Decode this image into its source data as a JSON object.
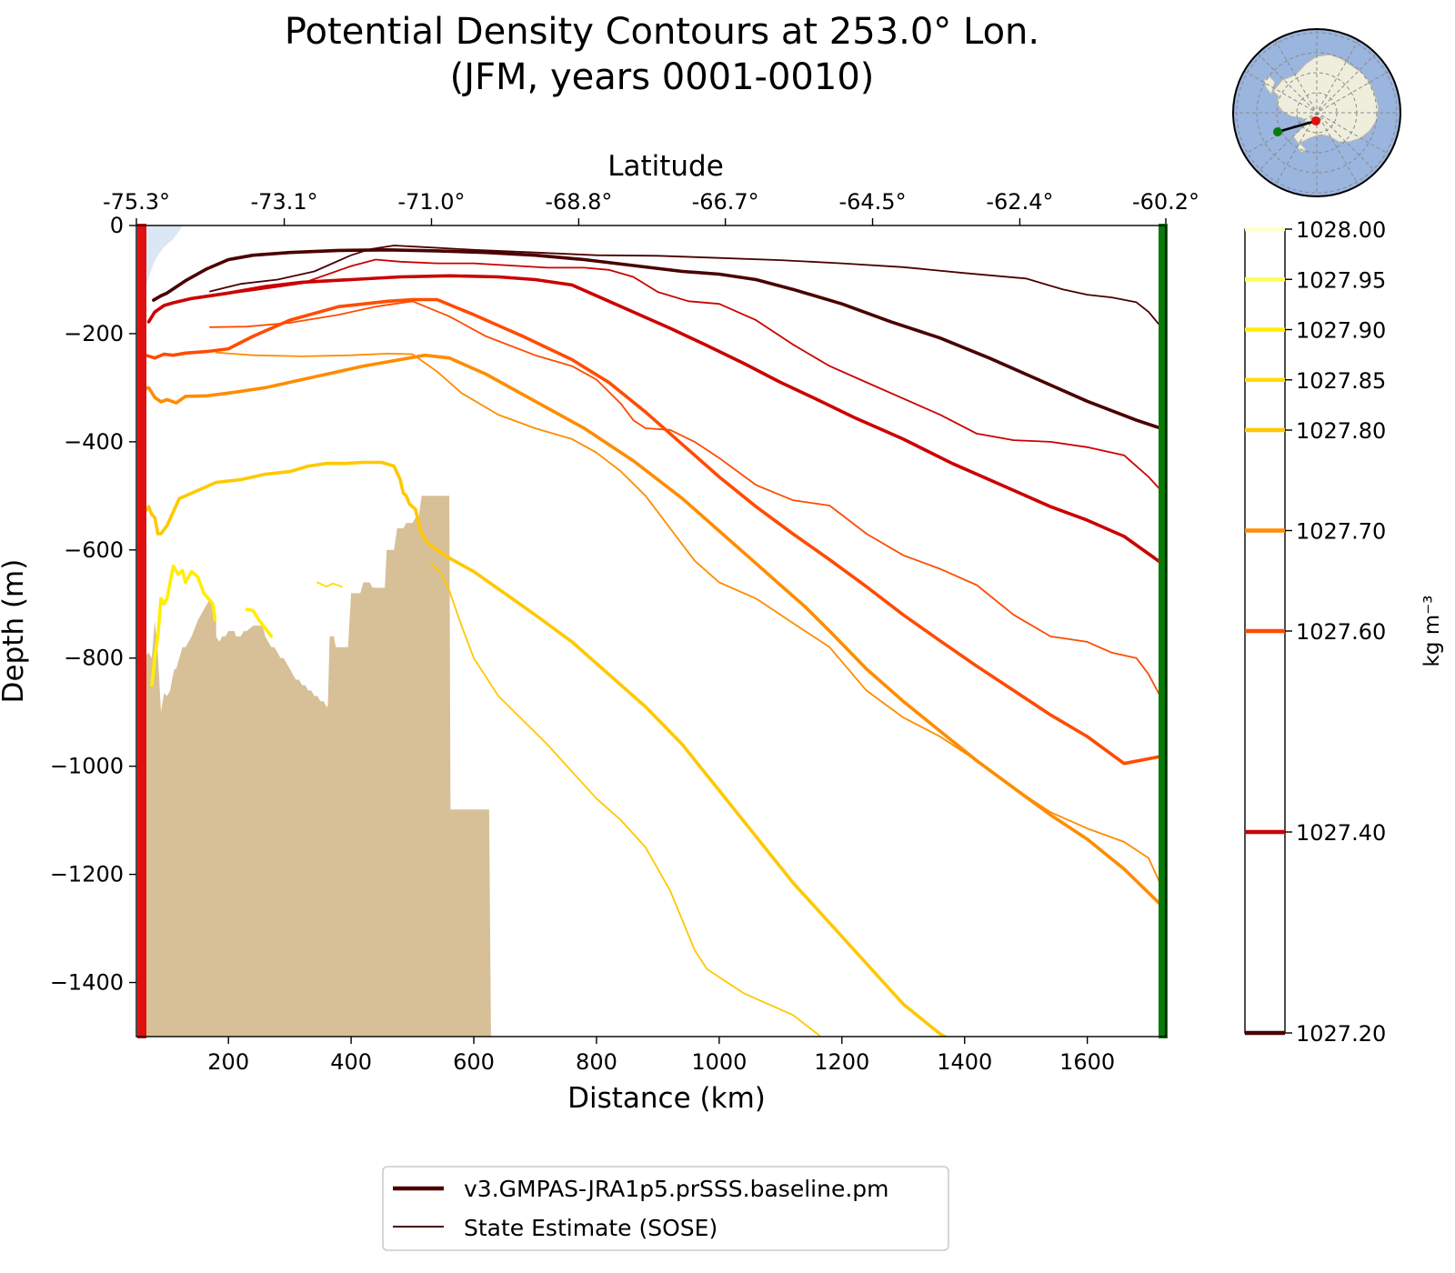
{
  "title": {
    "line1": "Potential Density Contours at 253.0° Lon.",
    "line2": "(JFM, years 0001-0010)"
  },
  "chart_data": {
    "type": "line",
    "xlabel": "Distance (km)",
    "ylabel": "Depth (m)",
    "top_axis_label": "Latitude",
    "xlim": [
      50,
      1728
    ],
    "ylim": [
      -1500,
      0
    ],
    "x_ticks": [
      200,
      400,
      600,
      800,
      1000,
      1200,
      1400,
      1600
    ],
    "x_tick_labels": [
      "200",
      "400",
      "600",
      "800",
      "1000",
      "1200",
      "1400",
      "1600"
    ],
    "y_ticks": [
      0,
      -200,
      -400,
      -600,
      -800,
      -1000,
      -1200,
      -1400
    ],
    "y_tick_labels": [
      "0",
      "−200",
      "−400",
      "−600",
      "−800",
      "−1000",
      "−1200",
      "−1400"
    ],
    "lat_ticks": [
      {
        "x": 50,
        "label": "-75.3°"
      },
      {
        "x": 291,
        "label": "-73.1°"
      },
      {
        "x": 531,
        "label": "-71.0°"
      },
      {
        "x": 771,
        "label": "-68.8°"
      },
      {
        "x": 1010,
        "label": "-66.7°"
      },
      {
        "x": 1250,
        "label": "-64.5°"
      },
      {
        "x": 1490,
        "label": "-62.4°"
      },
      {
        "x": 1728,
        "label": "-60.2°"
      }
    ],
    "colorbar": {
      "unit_label": "kg m⁻³",
      "min": 1027.2,
      "max": 1028.0,
      "levels": [
        {
          "value": 1028.0,
          "label": "1028.00",
          "color": "#ffffcc"
        },
        {
          "value": 1027.95,
          "label": "1027.95",
          "color": "#ffff55"
        },
        {
          "value": 1027.9,
          "label": "1027.90",
          "color": "#ffee00"
        },
        {
          "value": 1027.85,
          "label": "1027.85",
          "color": "#ffdd00"
        },
        {
          "value": 1027.8,
          "label": "1027.80",
          "color": "#ffc800"
        },
        {
          "value": 1027.7,
          "label": "1027.70",
          "color": "#ff8c00"
        },
        {
          "value": 1027.6,
          "label": "1027.60",
          "color": "#ff4c00"
        },
        {
          "value": 1027.4,
          "label": "1027.40",
          "color": "#cc0000"
        },
        {
          "value": 1027.2,
          "label": "1027.20",
          "color": "#4a0000"
        }
      ]
    },
    "legend": {
      "placement": "below plot",
      "entries": [
        {
          "label": "v3.GMPAS-JRA1p5.prSSS.baseline.pm",
          "style": "thick"
        },
        {
          "label": "State Estimate (SOSE)",
          "style": "thin"
        }
      ]
    },
    "series": [
      {
        "name": "v3.GMPAS-JRA1p5.prSSS.baseline.pm",
        "level": 1027.2,
        "color": "#4a0000",
        "width": 3.6,
        "x": [
          78,
          90,
          100,
          130,
          165,
          200,
          240,
          300,
          380,
          460,
          540,
          620,
          700,
          780,
          860,
          940,
          1000,
          1060,
          1120,
          1200,
          1280,
          1360,
          1440,
          1520,
          1600,
          1680,
          1728
        ],
        "y": [
          -138,
          -130,
          -125,
          -102,
          -80,
          -63,
          -55,
          -50,
          -46,
          -45,
          -47,
          -50,
          -55,
          -63,
          -74,
          -85,
          -90,
          -100,
          -118,
          -145,
          -178,
          -208,
          -245,
          -285,
          -325,
          -360,
          -378
        ]
      },
      {
        "name": "State Estimate (SOSE)",
        "level": 1027.2,
        "color": "#4a0000",
        "width": 1.8,
        "x": [
          170,
          220,
          280,
          340,
          400,
          430,
          470,
          520,
          600,
          700,
          800,
          900,
          1000,
          1100,
          1200,
          1300,
          1400,
          1500,
          1560,
          1600,
          1640,
          1680,
          1700,
          1728
        ],
        "y": [
          -122,
          -108,
          -100,
          -85,
          -55,
          -44,
          -37,
          -40,
          -45,
          -50,
          -55,
          -56,
          -60,
          -64,
          -70,
          -77,
          -88,
          -98,
          -118,
          -128,
          -133,
          -142,
          -160,
          -198
        ]
      },
      {
        "name": "v3.GMPAS-JRA1p5.prSSS.baseline.pm",
        "level": 1027.4,
        "color": "#cc0000",
        "width": 3.6,
        "x": [
          70,
          80,
          95,
          110,
          140,
          170,
          200,
          260,
          320,
          400,
          480,
          560,
          640,
          700,
          760,
          800,
          860,
          920,
          980,
          1040,
          1100,
          1160,
          1220,
          1300,
          1380,
          1460,
          1540,
          1600,
          1660,
          1728
        ],
        "y": [
          -178,
          -160,
          -148,
          -143,
          -135,
          -130,
          -125,
          -113,
          -105,
          -100,
          -95,
          -93,
          -95,
          -100,
          -110,
          -130,
          -160,
          -190,
          -222,
          -255,
          -290,
          -322,
          -355,
          -395,
          -440,
          -480,
          -520,
          -545,
          -575,
          -630
        ]
      },
      {
        "name": "State Estimate (SOSE)",
        "level": 1027.4,
        "color": "#cc0000",
        "width": 1.8,
        "x": [
          170,
          240,
          320,
          400,
          440,
          480,
          540,
          600,
          660,
          720,
          780,
          820,
          860,
          900,
          950,
          1000,
          1060,
          1120,
          1180,
          1240,
          1300,
          1360,
          1420,
          1480,
          1540,
          1600,
          1660,
          1700,
          1728
        ],
        "y": [
          -130,
          -120,
          -107,
          -75,
          -63,
          -67,
          -70,
          -70,
          -74,
          -78,
          -78,
          -82,
          -95,
          -123,
          -140,
          -145,
          -175,
          -220,
          -260,
          -290,
          -320,
          -350,
          -385,
          -397,
          -400,
          -410,
          -425,
          -465,
          -500
        ]
      },
      {
        "name": "v3.GMPAS-JRA1p5.prSSS.baseline.pm",
        "level": 1027.6,
        "color": "#ff4c00",
        "width": 3.6,
        "x": [
          65,
          80,
          95,
          110,
          130,
          165,
          200,
          240,
          300,
          380,
          460,
          500,
          540,
          600,
          680,
          760,
          820,
          880,
          940,
          1000,
          1060,
          1120,
          1180,
          1240,
          1300,
          1360,
          1420,
          1480,
          1540,
          1600,
          1660,
          1728
        ],
        "y": [
          -240,
          -245,
          -238,
          -240,
          -236,
          -233,
          -228,
          -205,
          -175,
          -150,
          -140,
          -137,
          -137,
          -165,
          -205,
          -248,
          -290,
          -345,
          -405,
          -465,
          -520,
          -570,
          -618,
          -668,
          -720,
          -768,
          -815,
          -860,
          -905,
          -945,
          -995,
          -980
        ]
      },
      {
        "name": "State Estimate (SOSE)",
        "level": 1027.6,
        "color": "#ff4c00",
        "width": 1.8,
        "x": [
          170,
          230,
          300,
          380,
          440,
          500,
          560,
          620,
          700,
          760,
          800,
          840,
          860,
          880,
          920,
          960,
          1000,
          1060,
          1120,
          1180,
          1240,
          1300,
          1360,
          1420,
          1480,
          1540,
          1600,
          1640,
          1680,
          1700,
          1728
        ],
        "y": [
          -188,
          -187,
          -180,
          -165,
          -150,
          -140,
          -168,
          -205,
          -240,
          -260,
          -285,
          -330,
          -360,
          -375,
          -378,
          -400,
          -430,
          -480,
          -508,
          -518,
          -570,
          -610,
          -635,
          -665,
          -720,
          -760,
          -770,
          -790,
          -800,
          -830,
          -890
        ]
      },
      {
        "name": "v3.GMPAS-JRA1p5.prSSS.baseline.pm",
        "level": 1027.7,
        "color": "#ff8c00",
        "width": 3.6,
        "x": [
          63,
          70,
          80,
          90,
          100,
          115,
          130,
          165,
          200,
          260,
          340,
          420,
          480,
          520,
          560,
          620,
          700,
          780,
          860,
          940,
          1000,
          1060,
          1100,
          1140,
          1180,
          1240,
          1300,
          1360,
          1420,
          1480,
          1540,
          1600,
          1660,
          1728
        ],
        "y": [
          -302,
          -300,
          -318,
          -326,
          -322,
          -328,
          -316,
          -315,
          -310,
          -300,
          -280,
          -260,
          -248,
          -240,
          -245,
          -275,
          -325,
          -375,
          -435,
          -505,
          -565,
          -625,
          -665,
          -705,
          -750,
          -820,
          -880,
          -935,
          -990,
          -1040,
          -1090,
          -1135,
          -1190,
          -1265
        ]
      },
      {
        "name": "State Estimate (SOSE)",
        "level": 1027.7,
        "color": "#ff8c00",
        "width": 1.8,
        "x": [
          180,
          240,
          320,
          400,
          460,
          500,
          540,
          580,
          640,
          700,
          760,
          800,
          840,
          880,
          920,
          960,
          1000,
          1060,
          1120,
          1180,
          1240,
          1300,
          1360,
          1420,
          1480,
          1540,
          1600,
          1660,
          1700,
          1728
        ],
        "y": [
          -235,
          -240,
          -242,
          -240,
          -237,
          -238,
          -270,
          -310,
          -350,
          -375,
          -395,
          -420,
          -455,
          -500,
          -560,
          -620,
          -660,
          -690,
          -735,
          -780,
          -860,
          -910,
          -945,
          -990,
          -1040,
          -1085,
          -1115,
          -1140,
          -1170,
          -1240
        ]
      },
      {
        "name": "v3.GMPAS-JRA1p5.prSSS.baseline.pm",
        "level": 1027.8,
        "color": "#ffc800",
        "width": 3.6,
        "x": [
          60,
          63,
          70,
          75,
          80,
          85,
          90,
          100,
          120,
          150,
          180,
          220,
          260,
          300,
          330,
          360,
          390,
          420,
          450,
          470,
          480,
          485,
          490,
          495,
          500,
          505,
          512,
          515,
          520,
          528,
          540,
          560,
          600,
          650,
          700,
          760,
          820,
          880,
          940,
          1000,
          1060,
          1120,
          1180,
          1240,
          1300,
          1360,
          1368
        ],
        "y": [
          -530,
          -530,
          -520,
          -535,
          -540,
          -570,
          -570,
          -555,
          -505,
          -490,
          -475,
          -470,
          -460,
          -455,
          -445,
          -440,
          -440,
          -438,
          -438,
          -445,
          -470,
          -495,
          -500,
          -515,
          -520,
          -525,
          -560,
          -570,
          -580,
          -590,
          -600,
          -615,
          -640,
          -680,
          -720,
          -770,
          -830,
          -890,
          -960,
          -1045,
          -1130,
          -1215,
          -1290,
          -1365,
          -1440,
          -1495,
          -1500
        ]
      },
      {
        "name": "State Estimate (SOSE)",
        "level": 1027.8,
        "color": "#ffc800",
        "width": 1.8,
        "x": [
          530,
          545,
          560,
          580,
          600,
          640,
          680,
          720,
          760,
          800,
          840,
          880,
          920,
          960,
          980,
          1000,
          1040,
          1080,
          1120,
          1160,
          1165
        ],
        "y": [
          -625,
          -640,
          -675,
          -740,
          -800,
          -870,
          -915,
          -960,
          -1010,
          -1060,
          -1100,
          -1150,
          -1230,
          -1340,
          -1375,
          -1390,
          -1420,
          -1440,
          -1460,
          -1495,
          -1500
        ]
      },
      {
        "name": "v3.GMPAS-JRA1p5.prSSS.baseline.pm",
        "level": 1027.9,
        "color": "#ffee00",
        "width": 3.6,
        "x": [
          75,
          80,
          85,
          90,
          95,
          100,
          105,
          110,
          118,
          125,
          130,
          140,
          150,
          160,
          175,
          178
        ],
        "y": [
          -850,
          -800,
          -760,
          -690,
          -700,
          -690,
          -660,
          -630,
          -645,
          -638,
          -660,
          -640,
          -650,
          -680,
          -700,
          -730
        ]
      },
      {
        "name": "v3.GMPAS-JRA1p5.prSSS.baseline.pm",
        "level": 1027.9,
        "color": "#ffee00",
        "width": 3.6,
        "x": [
          230,
          240,
          250,
          270
        ],
        "y": [
          -710,
          -712,
          -730,
          -760
        ]
      },
      {
        "name": "State Estimate (SOSE)",
        "level": 1027.85,
        "color": "#ffdd00",
        "width": 1.8,
        "x": [
          345,
          360,
          370,
          385
        ],
        "y": [
          -660,
          -668,
          -662,
          -668
        ]
      }
    ],
    "land": {
      "x": [
        55,
        55,
        65,
        70,
        75,
        80,
        85,
        90,
        95,
        100,
        105,
        108,
        112,
        115,
        120,
        125,
        130,
        140,
        150,
        165,
        170,
        175,
        180,
        180,
        185,
        190,
        195,
        200,
        205,
        210,
        212,
        215,
        220,
        225,
        230,
        240,
        245,
        250,
        255,
        258,
        260,
        265,
        270,
        275,
        280,
        285,
        290,
        295,
        300,
        305,
        310,
        315,
        320,
        325,
        330,
        335,
        340,
        345,
        350,
        355,
        360,
        362,
        365,
        370,
        372,
        375,
        380,
        390,
        395,
        400,
        405,
        410,
        415,
        420,
        425,
        430,
        435,
        440,
        445,
        450,
        455,
        458,
        460,
        465,
        470,
        475,
        480,
        485,
        490,
        495,
        500,
        505,
        510,
        515,
        520,
        525,
        530,
        535,
        540,
        545,
        550,
        555,
        560,
        562,
        565,
        570,
        575,
        580,
        585,
        590,
        595,
        600,
        605,
        610,
        615,
        620,
        625,
        628
      ],
      "depth": [
        -1500,
        -800,
        -795,
        -790,
        -800,
        -730,
        -790,
        -900,
        -865,
        -870,
        -860,
        -840,
        -820,
        -820,
        -800,
        -780,
        -780,
        -760,
        -730,
        -700,
        -690,
        -700,
        -720,
        -760,
        -770,
        -760,
        -760,
        -750,
        -750,
        -750,
        -760,
        -760,
        -760,
        -750,
        -750,
        -740,
        -740,
        -740,
        -740,
        -750,
        -760,
        -770,
        -780,
        -780,
        -790,
        -800,
        -800,
        -810,
        -820,
        -830,
        -840,
        -840,
        -850,
        -850,
        -860,
        -860,
        -870,
        -870,
        -880,
        -880,
        -890,
        -890,
        -760,
        -760,
        -760,
        -780,
        -780,
        -780,
        -780,
        -680,
        -680,
        -680,
        -680,
        -660,
        -660,
        -660,
        -670,
        -670,
        -670,
        -670,
        -670,
        -600,
        -600,
        -600,
        -600,
        -560,
        -560,
        -560,
        -550,
        -550,
        -550,
        -540,
        -540,
        -500,
        -500,
        -500,
        -500,
        -500,
        -500,
        -500,
        -500,
        -500,
        -500,
        -1080,
        -1080,
        -1080,
        -1080,
        -1080,
        -1080,
        -1080,
        -1080,
        -1080,
        -1080,
        -1080,
        -1080,
        -1080,
        -1080,
        -1500
      ]
    },
    "ice_shelf": {
      "x": [
        55,
        60,
        70,
        80,
        90,
        100,
        110,
        115,
        120,
        125,
        120,
        110,
        95,
        85,
        78,
        72,
        66,
        62,
        58,
        55
      ],
      "depth": [
        0,
        0,
        0,
        0,
        0,
        0,
        0,
        0,
        0,
        0,
        -10,
        -25,
        -40,
        -55,
        -70,
        -90,
        -110,
        -120,
        -120,
        -100
      ]
    }
  },
  "inset_map": {
    "ocean_color": "#9ab5de",
    "land_color": "#efeedc",
    "start_marker_color": "#e01010",
    "end_marker_color": "#0a7a0a"
  },
  "section_markers": {
    "start_color": "#e01010",
    "end_color": "#0a7a0a"
  }
}
